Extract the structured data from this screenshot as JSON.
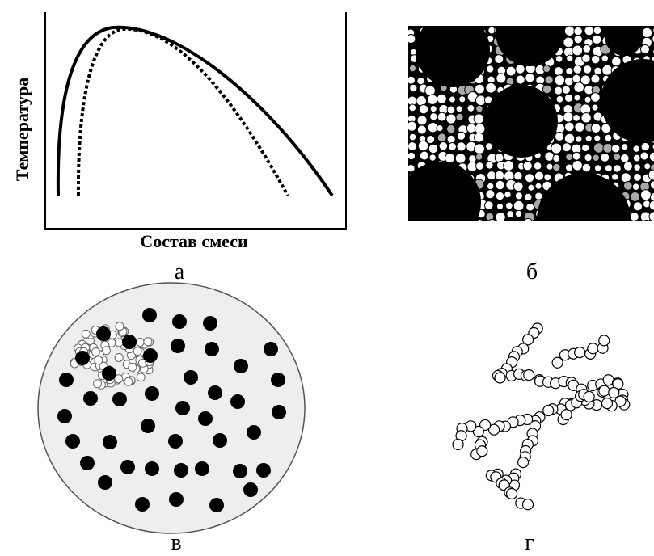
{
  "panels": [
    {
      "label": "а",
      "y_axis_label": "Температура",
      "x_axis_label": "Состав смеси"
    },
    {
      "label": "б"
    },
    {
      "label": "в"
    },
    {
      "label": "г"
    }
  ]
}
